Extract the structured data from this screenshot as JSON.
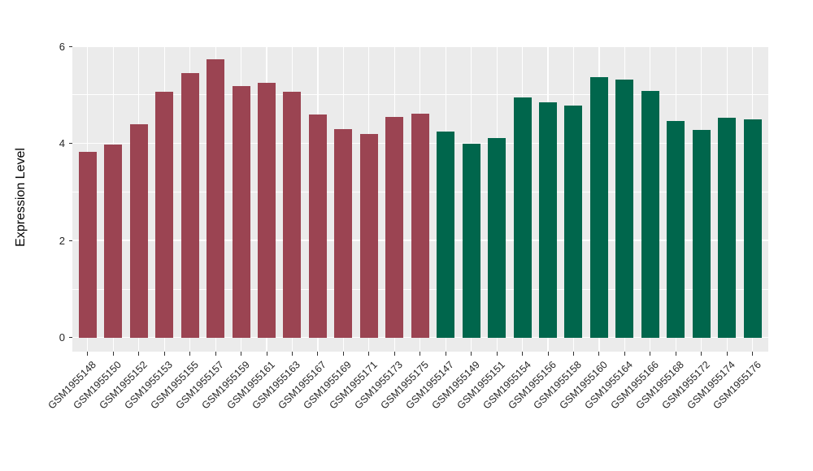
{
  "chart_data": {
    "type": "bar",
    "title": "",
    "xlabel": "",
    "ylabel": "Expression Level",
    "ylim": [
      0,
      6
    ],
    "yticks": [
      0,
      2,
      4,
      6
    ],
    "yticks_minor": [
      1,
      3,
      5
    ],
    "grid": "on",
    "legend": "none",
    "panel_bg": "#EBEBEB",
    "grid_color": "#FFFFFF",
    "group_colors": {
      "group1": "#9B4452",
      "group2": "#00664C"
    },
    "bars": [
      {
        "label": "GSM1955148",
        "value": 3.82,
        "group": "group1",
        "color": "#9B4452"
      },
      {
        "label": "GSM1955150",
        "value": 3.97,
        "group": "group1",
        "color": "#9B4452"
      },
      {
        "label": "GSM1955152",
        "value": 4.4,
        "group": "group1",
        "color": "#9B4452"
      },
      {
        "label": "GSM1955153",
        "value": 5.07,
        "group": "group1",
        "color": "#9B4452"
      },
      {
        "label": "GSM1955155",
        "value": 5.45,
        "group": "group1",
        "color": "#9B4452"
      },
      {
        "label": "GSM1955157",
        "value": 5.73,
        "group": "group1",
        "color": "#9B4452"
      },
      {
        "label": "GSM1955159",
        "value": 5.18,
        "group": "group1",
        "color": "#9B4452"
      },
      {
        "label": "GSM1955161",
        "value": 5.24,
        "group": "group1",
        "color": "#9B4452"
      },
      {
        "label": "GSM1955163",
        "value": 5.06,
        "group": "group1",
        "color": "#9B4452"
      },
      {
        "label": "GSM1955167",
        "value": 4.59,
        "group": "group1",
        "color": "#9B4452"
      },
      {
        "label": "GSM1955169",
        "value": 4.29,
        "group": "group1",
        "color": "#9B4452"
      },
      {
        "label": "GSM1955171",
        "value": 4.19,
        "group": "group1",
        "color": "#9B4452"
      },
      {
        "label": "GSM1955173",
        "value": 4.54,
        "group": "group1",
        "color": "#9B4452"
      },
      {
        "label": "GSM1955175",
        "value": 4.61,
        "group": "group1",
        "color": "#9B4452"
      },
      {
        "label": "GSM1955147",
        "value": 4.24,
        "group": "group2",
        "color": "#00664C"
      },
      {
        "label": "GSM1955149",
        "value": 4.0,
        "group": "group2",
        "color": "#00664C"
      },
      {
        "label": "GSM1955151",
        "value": 4.11,
        "group": "group2",
        "color": "#00664C"
      },
      {
        "label": "GSM1955154",
        "value": 4.95,
        "group": "group2",
        "color": "#00664C"
      },
      {
        "label": "GSM1955156",
        "value": 4.85,
        "group": "group2",
        "color": "#00664C"
      },
      {
        "label": "GSM1955158",
        "value": 4.78,
        "group": "group2",
        "color": "#00664C"
      },
      {
        "label": "GSM1955160",
        "value": 5.37,
        "group": "group2",
        "color": "#00664C"
      },
      {
        "label": "GSM1955164",
        "value": 5.31,
        "group": "group2",
        "color": "#00664C"
      },
      {
        "label": "GSM1955166",
        "value": 5.08,
        "group": "group2",
        "color": "#00664C"
      },
      {
        "label": "GSM1955168",
        "value": 4.46,
        "group": "group2",
        "color": "#00664C"
      },
      {
        "label": "GSM1955172",
        "value": 4.28,
        "group": "group2",
        "color": "#00664C"
      },
      {
        "label": "GSM1955174",
        "value": 4.53,
        "group": "group2",
        "color": "#00664C"
      },
      {
        "label": "GSM1955176",
        "value": 4.5,
        "group": "group2",
        "color": "#00664C"
      }
    ]
  }
}
